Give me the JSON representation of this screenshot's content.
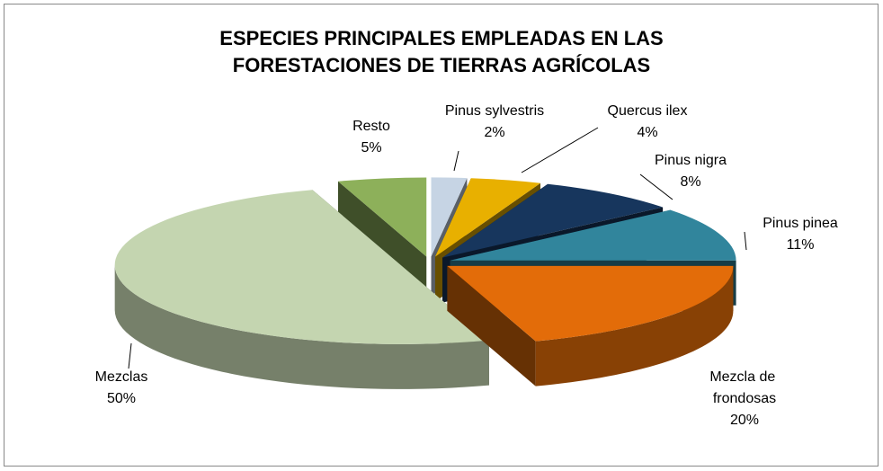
{
  "chart_data": {
    "type": "pie",
    "title": [
      "ESPECIES PRINCIPALES EMPLEADAS EN LAS",
      "FORESTACIONES DE TIERRAS AGRÍCOLAS"
    ],
    "categories": [
      "Pinus sylvestris",
      "Quercus ilex",
      "Pinus nigra",
      "Pinus pinea",
      "Mezcla de frondosas",
      "Mezclas",
      "Resto"
    ],
    "values": [
      2,
      4,
      8,
      11,
      20,
      50,
      5
    ],
    "value_labels": [
      "2%",
      "4%",
      "8%",
      "11%",
      "20%",
      "50%",
      "5%"
    ],
    "colors": [
      "#c6d4e4",
      "#e8b000",
      "#17365d",
      "#31859c",
      "#e36c09",
      "#c4d5b0",
      "#8db05a"
    ]
  }
}
